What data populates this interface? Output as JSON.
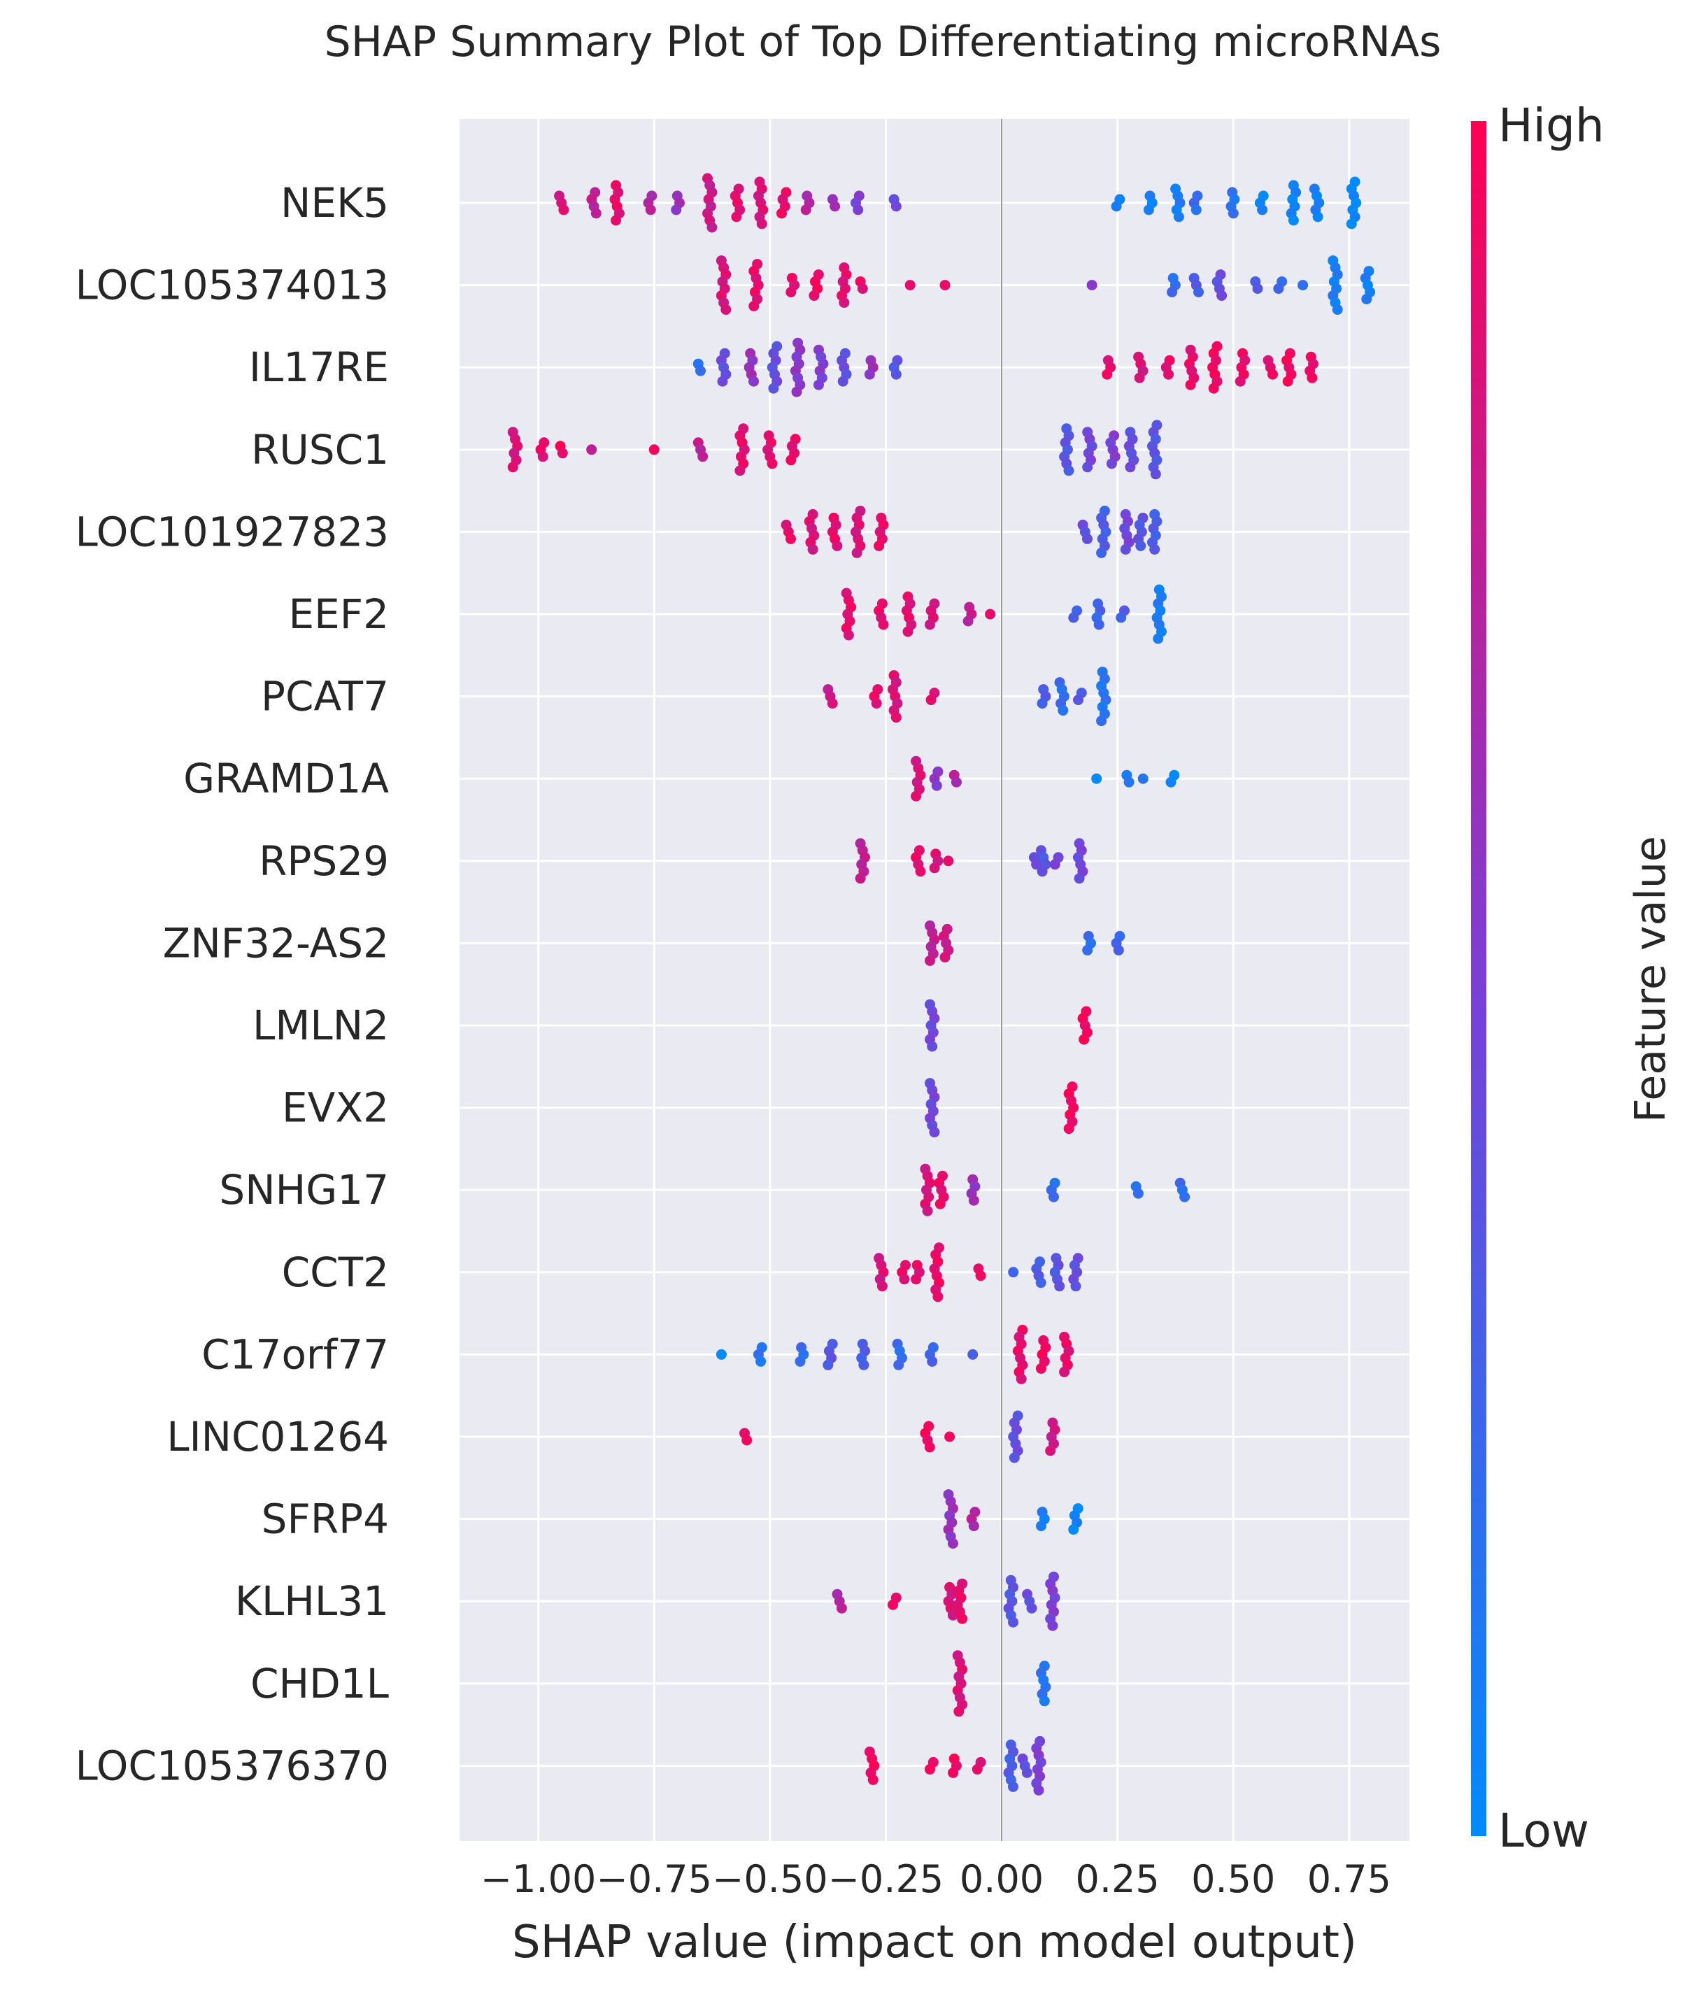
{
  "chart_data": {
    "type": "scatter",
    "subtype": "shap-beeswarm",
    "title": "SHAP Summary Plot of Top Differentiating microRNAs",
    "xlabel": "SHAP value (impact on model output)",
    "ylabel": "",
    "xlim": [
      -1.17,
      0.88
    ],
    "xticks": [
      -1.0,
      -0.75,
      -0.5,
      -0.25,
      0.0,
      0.25,
      0.5,
      0.75
    ],
    "xtick_labels": [
      "−1.00",
      "−0.75",
      "−0.50",
      "−0.25",
      "0.00",
      "0.25",
      "0.50",
      "0.75"
    ],
    "grid": true,
    "colorbar": {
      "label": "Feature value",
      "high_label": "High",
      "low_label": "Low",
      "high_color": "#ff0052",
      "low_color": "#008bfb"
    },
    "features": [
      {
        "name": "NEK5",
        "clusters": [
          {
            "x": -0.95,
            "c": 0.85,
            "n": 3
          },
          {
            "x": -0.88,
            "c": 0.75,
            "n": 4
          },
          {
            "x": -0.83,
            "c": 0.9,
            "n": 6
          },
          {
            "x": -0.76,
            "c": 0.7,
            "n": 3
          },
          {
            "x": -0.7,
            "c": 0.6,
            "n": 3
          },
          {
            "x": -0.63,
            "c": 0.8,
            "n": 8
          },
          {
            "x": -0.57,
            "c": 0.9,
            "n": 5
          },
          {
            "x": -0.52,
            "c": 0.85,
            "n": 7
          },
          {
            "x": -0.47,
            "c": 0.9,
            "n": 4
          },
          {
            "x": -0.42,
            "c": 0.7,
            "n": 3
          },
          {
            "x": -0.36,
            "c": 0.6,
            "n": 2
          },
          {
            "x": -0.31,
            "c": 0.5,
            "n": 3
          },
          {
            "x": -0.23,
            "c": 0.45,
            "n": 2
          },
          {
            "x": 0.25,
            "c": 0.05,
            "n": 2
          },
          {
            "x": 0.32,
            "c": 0.08,
            "n": 3
          },
          {
            "x": 0.38,
            "c": 0.1,
            "n": 5
          },
          {
            "x": 0.42,
            "c": 0.2,
            "n": 3
          },
          {
            "x": 0.5,
            "c": 0.15,
            "n": 4
          },
          {
            "x": 0.56,
            "c": 0.05,
            "n": 3
          },
          {
            "x": 0.63,
            "c": 0.05,
            "n": 6
          },
          {
            "x": 0.68,
            "c": 0.08,
            "n": 5
          },
          {
            "x": 0.76,
            "c": 0.02,
            "n": 7
          }
        ]
      },
      {
        "name": "LOC105374013",
        "clusters": [
          {
            "x": -0.6,
            "c": 0.85,
            "n": 8
          },
          {
            "x": -0.53,
            "c": 0.9,
            "n": 7
          },
          {
            "x": -0.45,
            "c": 0.9,
            "n": 3
          },
          {
            "x": -0.4,
            "c": 0.95,
            "n": 4
          },
          {
            "x": -0.34,
            "c": 0.88,
            "n": 6
          },
          {
            "x": -0.3,
            "c": 0.9,
            "n": 2
          },
          {
            "x": -0.2,
            "c": 0.95,
            "n": 1
          },
          {
            "x": -0.12,
            "c": 0.92,
            "n": 1
          },
          {
            "x": 0.19,
            "c": 0.5,
            "n": 1
          },
          {
            "x": 0.37,
            "c": 0.2,
            "n": 3
          },
          {
            "x": 0.42,
            "c": 0.3,
            "n": 3
          },
          {
            "x": 0.47,
            "c": 0.4,
            "n": 4
          },
          {
            "x": 0.55,
            "c": 0.35,
            "n": 2
          },
          {
            "x": 0.6,
            "c": 0.2,
            "n": 2
          },
          {
            "x": 0.65,
            "c": 0.15,
            "n": 1
          },
          {
            "x": 0.72,
            "c": 0.1,
            "n": 8
          },
          {
            "x": 0.79,
            "c": 0.08,
            "n": 5
          }
        ]
      },
      {
        "name": "IL17RE",
        "clusters": [
          {
            "x": -0.65,
            "c": 0.2,
            "n": 2
          },
          {
            "x": -0.6,
            "c": 0.4,
            "n": 5
          },
          {
            "x": -0.54,
            "c": 0.6,
            "n": 5
          },
          {
            "x": -0.49,
            "c": 0.4,
            "n": 7
          },
          {
            "x": -0.44,
            "c": 0.55,
            "n": 8
          },
          {
            "x": -0.39,
            "c": 0.5,
            "n": 6
          },
          {
            "x": -0.34,
            "c": 0.4,
            "n": 5
          },
          {
            "x": -0.28,
            "c": 0.6,
            "n": 3
          },
          {
            "x": -0.23,
            "c": 0.35,
            "n": 3
          },
          {
            "x": 0.23,
            "c": 0.9,
            "n": 3
          },
          {
            "x": 0.3,
            "c": 0.85,
            "n": 4
          },
          {
            "x": 0.36,
            "c": 0.9,
            "n": 3
          },
          {
            "x": 0.41,
            "c": 0.9,
            "n": 6
          },
          {
            "x": 0.46,
            "c": 0.95,
            "n": 7
          },
          {
            "x": 0.52,
            "c": 0.92,
            "n": 5
          },
          {
            "x": 0.58,
            "c": 0.9,
            "n": 3
          },
          {
            "x": 0.62,
            "c": 0.95,
            "n": 5
          },
          {
            "x": 0.67,
            "c": 0.92,
            "n": 4
          }
        ]
      },
      {
        "name": "RUSC1",
        "clusters": [
          {
            "x": -1.05,
            "c": 0.85,
            "n": 6
          },
          {
            "x": -0.99,
            "c": 0.9,
            "n": 3
          },
          {
            "x": -0.95,
            "c": 0.95,
            "n": 2
          },
          {
            "x": -0.89,
            "c": 0.8,
            "n": 1
          },
          {
            "x": -0.75,
            "c": 0.95,
            "n": 1
          },
          {
            "x": -0.65,
            "c": 0.75,
            "n": 3
          },
          {
            "x": -0.56,
            "c": 0.9,
            "n": 7
          },
          {
            "x": -0.5,
            "c": 0.88,
            "n": 5
          },
          {
            "x": -0.45,
            "c": 0.9,
            "n": 4
          },
          {
            "x": 0.14,
            "c": 0.35,
            "n": 7
          },
          {
            "x": 0.19,
            "c": 0.45,
            "n": 6
          },
          {
            "x": 0.24,
            "c": 0.5,
            "n": 5
          },
          {
            "x": 0.28,
            "c": 0.4,
            "n": 6
          },
          {
            "x": 0.33,
            "c": 0.35,
            "n": 8
          }
        ]
      },
      {
        "name": "LOC101927823",
        "clusters": [
          {
            "x": -0.46,
            "c": 0.9,
            "n": 3
          },
          {
            "x": -0.41,
            "c": 0.85,
            "n": 6
          },
          {
            "x": -0.36,
            "c": 0.9,
            "n": 5
          },
          {
            "x": -0.31,
            "c": 0.85,
            "n": 7
          },
          {
            "x": -0.26,
            "c": 0.9,
            "n": 5
          },
          {
            "x": 0.18,
            "c": 0.4,
            "n": 3
          },
          {
            "x": 0.22,
            "c": 0.3,
            "n": 7
          },
          {
            "x": 0.27,
            "c": 0.45,
            "n": 6
          },
          {
            "x": 0.3,
            "c": 0.35,
            "n": 5
          },
          {
            "x": 0.33,
            "c": 0.3,
            "n": 6
          }
        ]
      },
      {
        "name": "EEF2",
        "clusters": [
          {
            "x": -0.33,
            "c": 0.9,
            "n": 7
          },
          {
            "x": -0.26,
            "c": 0.9,
            "n": 4
          },
          {
            "x": -0.2,
            "c": 0.88,
            "n": 6
          },
          {
            "x": -0.15,
            "c": 0.85,
            "n": 4
          },
          {
            "x": -0.07,
            "c": 0.75,
            "n": 3
          },
          {
            "x": -0.02,
            "c": 0.85,
            "n": 1
          },
          {
            "x": 0.16,
            "c": 0.3,
            "n": 2
          },
          {
            "x": 0.21,
            "c": 0.25,
            "n": 4
          },
          {
            "x": 0.26,
            "c": 0.3,
            "n": 2
          },
          {
            "x": 0.34,
            "c": 0.1,
            "n": 8
          }
        ]
      },
      {
        "name": "PCAT7",
        "clusters": [
          {
            "x": -0.37,
            "c": 0.8,
            "n": 3
          },
          {
            "x": -0.27,
            "c": 0.9,
            "n": 3
          },
          {
            "x": -0.23,
            "c": 0.85,
            "n": 7
          },
          {
            "x": -0.15,
            "c": 0.9,
            "n": 2
          },
          {
            "x": 0.09,
            "c": 0.3,
            "n": 3
          },
          {
            "x": 0.13,
            "c": 0.2,
            "n": 5
          },
          {
            "x": 0.17,
            "c": 0.35,
            "n": 2
          },
          {
            "x": 0.22,
            "c": 0.15,
            "n": 8
          }
        ]
      },
      {
        "name": "GRAMD1A",
        "clusters": [
          {
            "x": -0.18,
            "c": 0.85,
            "n": 6
          },
          {
            "x": -0.14,
            "c": 0.55,
            "n": 3
          },
          {
            "x": -0.1,
            "c": 0.7,
            "n": 2
          },
          {
            "x": 0.2,
            "c": 0.05,
            "n": 1
          },
          {
            "x": 0.27,
            "c": 0.1,
            "n": 2
          },
          {
            "x": 0.31,
            "c": 0.1,
            "n": 1
          },
          {
            "x": 0.37,
            "c": 0.05,
            "n": 2
          }
        ]
      },
      {
        "name": "RPS29",
        "clusters": [
          {
            "x": -0.3,
            "c": 0.75,
            "n": 6
          },
          {
            "x": -0.18,
            "c": 0.9,
            "n": 4
          },
          {
            "x": -0.14,
            "c": 0.85,
            "n": 3
          },
          {
            "x": -0.12,
            "c": 0.95,
            "n": 1
          },
          {
            "x": 0.07,
            "c": 0.4,
            "n": 2
          },
          {
            "x": 0.09,
            "c": 0.35,
            "n": 4
          },
          {
            "x": 0.12,
            "c": 0.5,
            "n": 2
          },
          {
            "x": 0.17,
            "c": 0.45,
            "n": 6
          }
        ]
      },
      {
        "name": "ZNF32-AS2",
        "clusters": [
          {
            "x": -0.15,
            "c": 0.75,
            "n": 6
          },
          {
            "x": -0.12,
            "c": 0.8,
            "n": 5
          },
          {
            "x": 0.19,
            "c": 0.2,
            "n": 3
          },
          {
            "x": 0.25,
            "c": 0.25,
            "n": 3
          }
        ]
      },
      {
        "name": "LMLN2",
        "clusters": [
          {
            "x": -0.15,
            "c": 0.45,
            "n": 7
          },
          {
            "x": 0.18,
            "c": 0.95,
            "n": 5
          }
        ]
      },
      {
        "name": "EVX2",
        "clusters": [
          {
            "x": -0.15,
            "c": 0.45,
            "n": 8
          },
          {
            "x": 0.15,
            "c": 0.95,
            "n": 7
          }
        ]
      },
      {
        "name": "SNHG17",
        "clusters": [
          {
            "x": -0.16,
            "c": 0.85,
            "n": 7
          },
          {
            "x": -0.13,
            "c": 0.9,
            "n": 5
          },
          {
            "x": -0.06,
            "c": 0.6,
            "n": 4
          },
          {
            "x": 0.11,
            "c": 0.2,
            "n": 3
          },
          {
            "x": 0.29,
            "c": 0.15,
            "n": 2
          },
          {
            "x": 0.39,
            "c": 0.2,
            "n": 3
          }
        ]
      },
      {
        "name": "CCT2",
        "clusters": [
          {
            "x": -0.26,
            "c": 0.85,
            "n": 5
          },
          {
            "x": -0.21,
            "c": 0.9,
            "n": 3
          },
          {
            "x": -0.18,
            "c": 0.9,
            "n": 3
          },
          {
            "x": -0.14,
            "c": 0.92,
            "n": 8
          },
          {
            "x": -0.05,
            "c": 0.9,
            "n": 2
          },
          {
            "x": 0.03,
            "c": 0.2,
            "n": 1
          },
          {
            "x": 0.08,
            "c": 0.3,
            "n": 4
          },
          {
            "x": 0.12,
            "c": 0.35,
            "n": 5
          },
          {
            "x": 0.16,
            "c": 0.4,
            "n": 5
          }
        ]
      },
      {
        "name": "C17orf77",
        "clusters": [
          {
            "x": -0.6,
            "c": 0.05,
            "n": 1
          },
          {
            "x": -0.52,
            "c": 0.15,
            "n": 3
          },
          {
            "x": -0.43,
            "c": 0.2,
            "n": 3
          },
          {
            "x": -0.37,
            "c": 0.35,
            "n": 4
          },
          {
            "x": -0.3,
            "c": 0.3,
            "n": 4
          },
          {
            "x": -0.22,
            "c": 0.2,
            "n": 4
          },
          {
            "x": -0.15,
            "c": 0.25,
            "n": 3
          },
          {
            "x": -0.06,
            "c": 0.3,
            "n": 1
          },
          {
            "x": 0.04,
            "c": 0.9,
            "n": 8
          },
          {
            "x": 0.09,
            "c": 0.95,
            "n": 5
          },
          {
            "x": 0.14,
            "c": 0.9,
            "n": 6
          }
        ]
      },
      {
        "name": "LINC01264",
        "clusters": [
          {
            "x": -0.55,
            "c": 0.95,
            "n": 2
          },
          {
            "x": -0.16,
            "c": 0.95,
            "n": 4
          },
          {
            "x": -0.11,
            "c": 0.9,
            "n": 1
          },
          {
            "x": 0.03,
            "c": 0.4,
            "n": 7
          },
          {
            "x": 0.11,
            "c": 0.8,
            "n": 5
          }
        ]
      },
      {
        "name": "SFRP4",
        "clusters": [
          {
            "x": -0.11,
            "c": 0.6,
            "n": 8
          },
          {
            "x": -0.06,
            "c": 0.7,
            "n": 3
          },
          {
            "x": 0.09,
            "c": 0.1,
            "n": 3
          },
          {
            "x": 0.16,
            "c": 0.05,
            "n": 4
          }
        ]
      },
      {
        "name": "KLHL31",
        "clusters": [
          {
            "x": -0.35,
            "c": 0.7,
            "n": 3
          },
          {
            "x": -0.23,
            "c": 0.9,
            "n": 2
          },
          {
            "x": -0.11,
            "c": 0.85,
            "n": 5
          },
          {
            "x": -0.09,
            "c": 0.9,
            "n": 6
          },
          {
            "x": 0.02,
            "c": 0.35,
            "n": 7
          },
          {
            "x": 0.06,
            "c": 0.4,
            "n": 3
          },
          {
            "x": 0.11,
            "c": 0.5,
            "n": 8
          }
        ]
      },
      {
        "name": "CHD1L",
        "clusters": [
          {
            "x": -0.09,
            "c": 0.85,
            "n": 9
          },
          {
            "x": 0.09,
            "c": 0.15,
            "n": 6
          }
        ]
      },
      {
        "name": "LOC105376370",
        "clusters": [
          {
            "x": -0.28,
            "c": 0.95,
            "n": 5
          },
          {
            "x": -0.15,
            "c": 0.92,
            "n": 2
          },
          {
            "x": -0.1,
            "c": 0.95,
            "n": 3
          },
          {
            "x": -0.05,
            "c": 0.9,
            "n": 2
          },
          {
            "x": 0.02,
            "c": 0.3,
            "n": 7
          },
          {
            "x": 0.05,
            "c": 0.4,
            "n": 3
          },
          {
            "x": 0.08,
            "c": 0.5,
            "n": 8
          }
        ]
      }
    ]
  }
}
